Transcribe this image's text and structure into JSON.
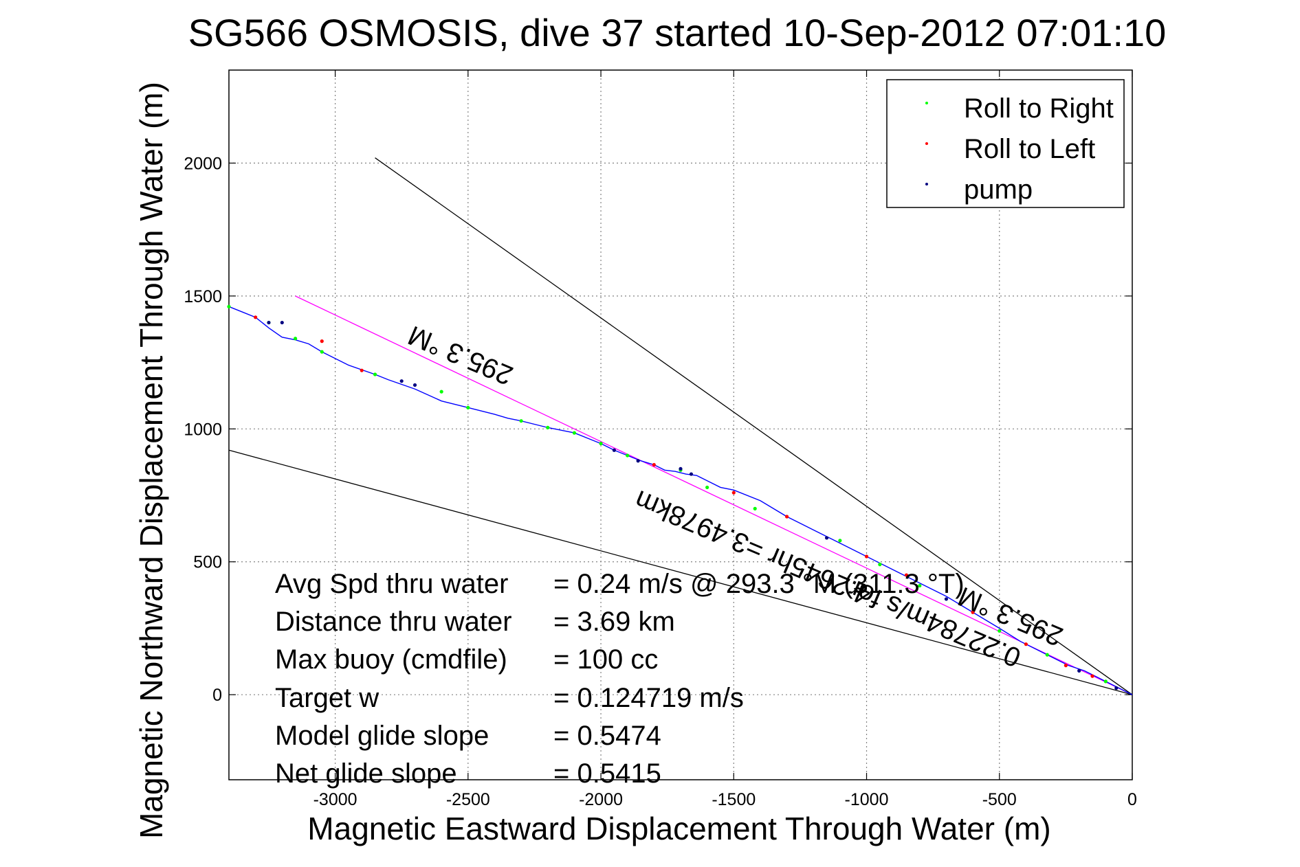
{
  "chart_data": {
    "type": "line",
    "title": "SG566 OSMOSIS, dive 37 started 10-Sep-2012 07:01:10",
    "xlabel": "Magnetic Eastward Displacement Through Water (m)",
    "ylabel": "Magnetic Northward Displacement Through Water (m)",
    "xlim": [
      -3400,
      0
    ],
    "ylim": [
      -320,
      2350
    ],
    "xticks": [
      -3000,
      -2500,
      -2000,
      -1500,
      -1000,
      -500,
      0
    ],
    "yticks": [
      0,
      500,
      1000,
      1500,
      2000
    ],
    "grid": true,
    "legend_position": "top-right",
    "legend": [
      {
        "label": "Roll to Right",
        "color": "#00ff00"
      },
      {
        "label": "Roll to Left",
        "color": "#ff0000"
      },
      {
        "label": "pump",
        "color": "#000080"
      }
    ],
    "track": {
      "color": "#0000ff",
      "x": [
        0,
        -40,
        -80,
        -120,
        -180,
        -240,
        -300,
        -360,
        -420,
        -500,
        -600,
        -700,
        -800,
        -900,
        -1000,
        -1100,
        -1200,
        -1300,
        -1400,
        -1500,
        -1550,
        -1600,
        -1640,
        -1680,
        -1720,
        -1760,
        -1800,
        -1850,
        -1900,
        -1950,
        -2000,
        -2050,
        -2100,
        -2200,
        -2300,
        -2350,
        -2400,
        -2500,
        -2600,
        -2700,
        -2800,
        -2850,
        -2950,
        -3050,
        -3100,
        -3150,
        -3200,
        -3250,
        -3300,
        -3350,
        -3400
      ],
      "y": [
        0,
        20,
        40,
        60,
        90,
        110,
        140,
        170,
        200,
        250,
        310,
        370,
        420,
        470,
        520,
        570,
        620,
        670,
        730,
        770,
        780,
        805,
        825,
        830,
        840,
        845,
        865,
        880,
        900,
        920,
        945,
        965,
        985,
        1005,
        1030,
        1040,
        1055,
        1080,
        1105,
        1150,
        1185,
        1205,
        1240,
        1290,
        1320,
        1335,
        1345,
        1380,
        1420,
        1440,
        1460
      ]
    },
    "markers": {
      "roll_right": {
        "x": [
          -3400,
          -3250,
          -3150,
          -3050,
          -2850,
          -2600,
          -2500,
          -2300,
          -2200,
          -2100,
          -2000,
          -1900,
          -1700,
          -1600,
          -1420,
          -1100,
          -950,
          -800,
          -500,
          -320,
          -100
        ],
        "y": [
          1460,
          1400,
          1340,
          1290,
          1205,
          1140,
          1080,
          1030,
          1005,
          985,
          945,
          900,
          845,
          780,
          700,
          580,
          490,
          410,
          240,
          150,
          50
        ]
      },
      "roll_left": {
        "x": [
          -3300,
          -3050,
          -2900,
          -1800,
          -1500,
          -1300,
          -1000,
          -850,
          -600,
          -400,
          -250,
          -150
        ],
        "y": [
          1420,
          1330,
          1220,
          865,
          760,
          670,
          520,
          450,
          310,
          190,
          110,
          70
        ]
      },
      "pump": {
        "x": [
          -3250,
          -3200,
          -2750,
          -2700,
          -1950,
          -1860,
          -1700,
          -1660,
          -1150,
          -700,
          -200,
          -60
        ],
        "y": [
          1400,
          1400,
          1180,
          1165,
          920,
          880,
          850,
          830,
          590,
          360,
          90,
          25
        ]
      }
    },
    "reference_lines": [
      {
        "color": "#ff00ff",
        "x": [
          0,
          -3150
        ],
        "y": [
          0,
          1500
        ],
        "label": "295.3 °M"
      },
      {
        "color": "#000000",
        "x": [
          0,
          -2850
        ],
        "y": [
          0,
          2020
        ]
      },
      {
        "color": "#000000",
        "x": [
          0,
          -3400
        ],
        "y": [
          0,
          920
        ]
      }
    ],
    "annotations": {
      "heading_upper": "295.3 °M",
      "heading_lower": "295.3 °M",
      "current_1": "0.22784m/s for",
      "current_2": "4.2645hr =3.4978km"
    },
    "stats": [
      {
        "label": "Avg Spd thru water",
        "value": "=  0.24 m/s @ 293.3  °M (311.3 °T)"
      },
      {
        "label": "Distance thru water",
        "value": "=  3.69 km"
      },
      {
        "label": "Max buoy (cmdfile)",
        "value": "= 100 cc"
      },
      {
        "label": "Target w",
        "value": "= 0.124719 m/s"
      },
      {
        "label": "Model glide slope",
        "value": "= 0.5474"
      },
      {
        "label": "Net glide slope",
        "value": "= 0.5415"
      }
    ]
  }
}
